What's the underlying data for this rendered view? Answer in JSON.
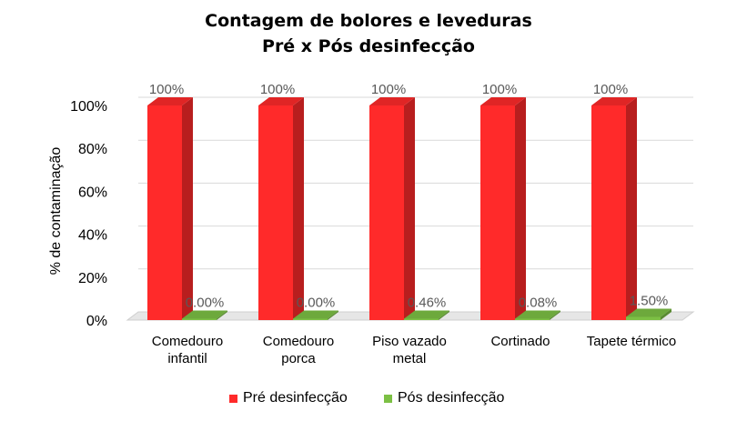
{
  "chart_data": {
    "type": "bar",
    "title": "Contagem de bolores e leveduras",
    "subtitle": "Pré x Pós desinfecção",
    "ylabel": "% de contaminação",
    "xlabel": "",
    "ylim": [
      0,
      100
    ],
    "y_ticks": [
      "0%",
      "20%",
      "40%",
      "60%",
      "80%",
      "100%"
    ],
    "categories": [
      [
        "Comedouro",
        "infantil"
      ],
      [
        "Comedouro",
        "porca"
      ],
      [
        "Piso vazado",
        "metal"
      ],
      [
        "Cortinado"
      ],
      [
        "Tapete térmico"
      ]
    ],
    "series": [
      {
        "name": "Pré desinfecção",
        "color": "#ff2a2a",
        "values": [
          100,
          100,
          100,
          100,
          100
        ],
        "labels": [
          "100%",
          "100%",
          "100%",
          "100%",
          "100%"
        ]
      },
      {
        "name": "Pós desinfecção",
        "color": "#7cc044",
        "values": [
          0,
          0,
          0.46,
          0.08,
          1.5
        ],
        "labels": [
          "0.00%",
          "0.00%",
          "0.46%",
          "0.08%",
          "1.50%"
        ]
      }
    ],
    "grid": true,
    "legend_position": "bottom"
  }
}
